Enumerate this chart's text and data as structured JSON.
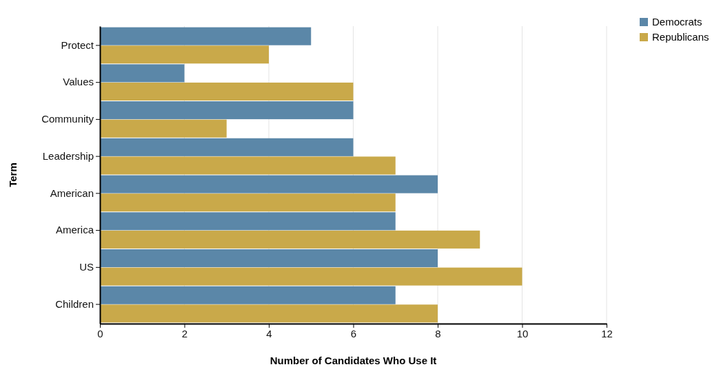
{
  "chart_data": {
    "type": "bar",
    "orientation": "horizontal",
    "xlabel": "Number of Candidates Who Use It",
    "ylabel": "Term",
    "categories": [
      "Protect",
      "Values",
      "Community",
      "Leadership",
      "American",
      "America",
      "US",
      "Children"
    ],
    "series": [
      {
        "name": "Democrats",
        "color": "#5b87a8",
        "values": [
          5,
          2,
          6,
          6,
          8,
          7,
          8,
          7
        ]
      },
      {
        "name": "Republicans",
        "color": "#c9a94a",
        "values": [
          4,
          6,
          3,
          7,
          7,
          9,
          10,
          8
        ]
      }
    ],
    "xlim": [
      0,
      12
    ],
    "xticks": [
      0,
      2,
      4,
      6,
      8,
      10,
      12
    ],
    "grid": "x",
    "legend": "top right"
  }
}
